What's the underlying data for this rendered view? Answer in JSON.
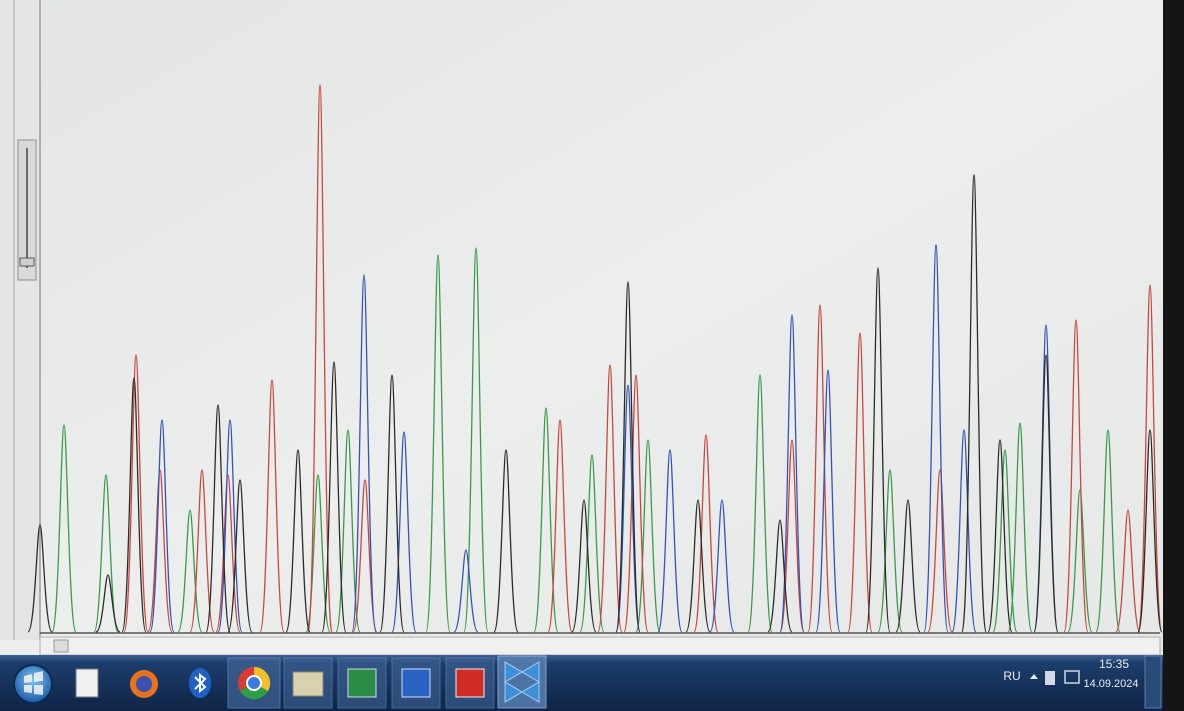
{
  "taskbar": {
    "language": "RU",
    "time": "15:35",
    "date": "14.09.2024"
  }
}
